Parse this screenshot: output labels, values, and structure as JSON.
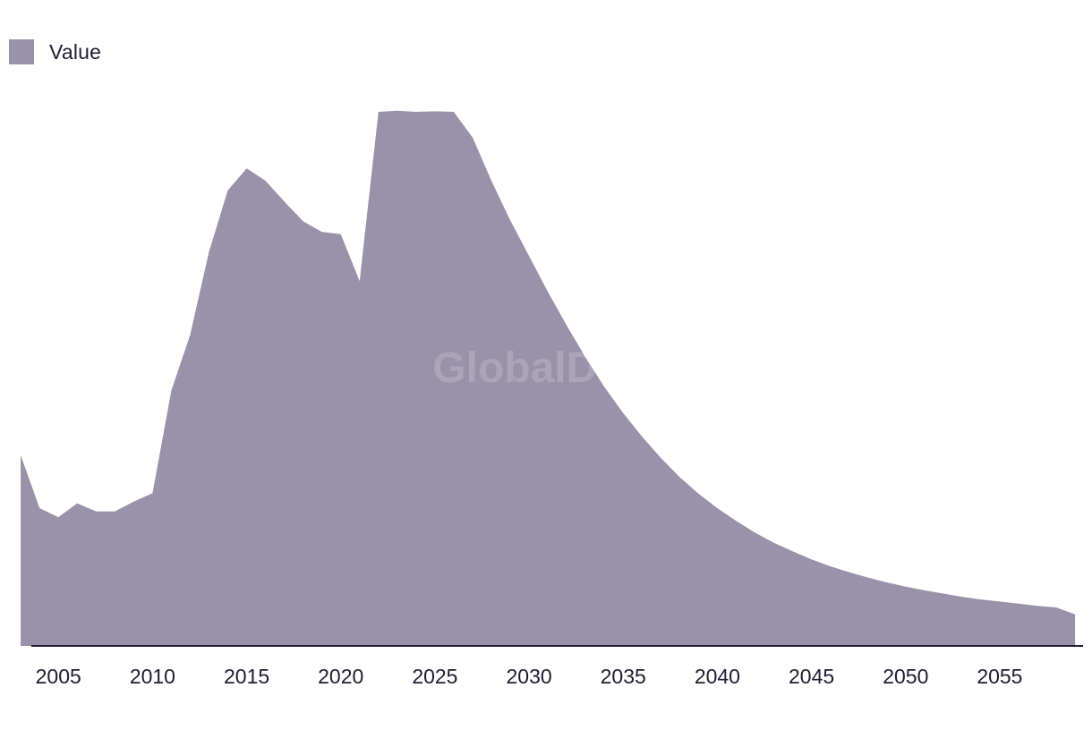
{
  "legend": {
    "label": "Value",
    "color": "#9a91aa"
  },
  "watermark": "GlobalData",
  "colors": {
    "area": "#9a91aa",
    "axis": "#1f1c33",
    "text": "#1f1c33"
  },
  "chart_data": {
    "type": "area",
    "title": "",
    "xlabel": "",
    "ylabel": "",
    "grid": false,
    "legend_position": "top-left",
    "series": [
      {
        "name": "Value",
        "x": [
          2003,
          2004,
          2005,
          2006,
          2007,
          2008,
          2009,
          2010,
          2011,
          2012,
          2013,
          2014,
          2015,
          2016,
          2017,
          2018,
          2019,
          2020,
          2021,
          2022,
          2023,
          2024,
          2025,
          2026,
          2027,
          2028,
          2029,
          2030,
          2031,
          2032,
          2033,
          2034,
          2035,
          2036,
          2037,
          2038,
          2039,
          2040,
          2041,
          2042,
          2043,
          2044,
          2045,
          2046,
          2047,
          2048,
          2049,
          2050,
          2051,
          2052,
          2053,
          2054,
          2055,
          2056,
          2057,
          2058,
          2059
        ],
        "values": [
          35.7,
          25.8,
          24.1,
          26.7,
          25.2,
          25.2,
          27.0,
          28.6,
          47.8,
          58.2,
          73.8,
          85.3,
          89.4,
          87.1,
          83.2,
          79.5,
          77.5,
          77.1,
          68.3,
          100.0,
          100.2,
          100.0,
          100.1,
          100.0,
          95.2,
          87.1,
          79.7,
          73.0,
          66.3,
          60.0,
          54.0,
          48.5,
          43.6,
          39.2,
          35.2,
          31.6,
          28.5,
          25.8,
          23.4,
          21.2,
          19.3,
          17.7,
          16.2,
          14.9,
          13.8,
          12.8,
          11.9,
          11.1,
          10.4,
          9.8,
          9.2,
          8.7,
          8.3,
          7.9,
          7.5,
          7.2,
          5.9
        ]
      }
    ],
    "x_ticks": [
      2005,
      2010,
      2015,
      2020,
      2025,
      2030,
      2035,
      2040,
      2045,
      2050,
      2055
    ],
    "xlim": [
      2001.9,
      2059.9
    ],
    "ylim": [
      0,
      108
    ]
  }
}
